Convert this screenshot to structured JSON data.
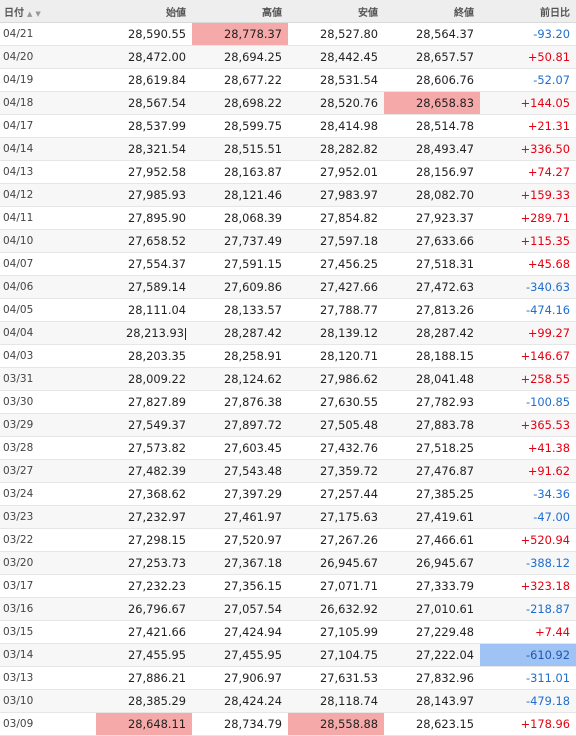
{
  "headers": {
    "date": "日付",
    "open": "始値",
    "high": "高値",
    "low": "安値",
    "close": "終値",
    "change": "前日比"
  },
  "rows": [
    {
      "date": "04/21",
      "open": "28,590.55",
      "high": "28,778.37",
      "low": "28,527.80",
      "close": "28,564.37",
      "change": "-93.20",
      "dir": "down",
      "hl": "high"
    },
    {
      "date": "04/20",
      "open": "28,472.00",
      "high": "28,694.25",
      "low": "28,442.45",
      "close": "28,657.57",
      "change": "+50.81",
      "dir": "up"
    },
    {
      "date": "04/19",
      "open": "28,619.84",
      "high": "28,677.22",
      "low": "28,531.54",
      "close": "28,606.76",
      "change": "-52.07",
      "dir": "down"
    },
    {
      "date": "04/18",
      "open": "28,567.54",
      "high": "28,698.22",
      "low": "28,520.76",
      "close": "28,658.83",
      "change": "+144.05",
      "dir": "up",
      "hl": "close"
    },
    {
      "date": "04/17",
      "open": "28,537.99",
      "high": "28,599.75",
      "low": "28,414.98",
      "close": "28,514.78",
      "change": "+21.31",
      "dir": "up"
    },
    {
      "date": "04/14",
      "open": "28,321.54",
      "high": "28,515.51",
      "low": "28,282.82",
      "close": "28,493.47",
      "change": "+336.50",
      "dir": "up"
    },
    {
      "date": "04/13",
      "open": "27,952.58",
      "high": "28,163.87",
      "low": "27,952.01",
      "close": "28,156.97",
      "change": "+74.27",
      "dir": "up"
    },
    {
      "date": "04/12",
      "open": "27,985.93",
      "high": "28,121.46",
      "low": "27,983.97",
      "close": "28,082.70",
      "change": "+159.33",
      "dir": "up"
    },
    {
      "date": "04/11",
      "open": "27,895.90",
      "high": "28,068.39",
      "low": "27,854.82",
      "close": "27,923.37",
      "change": "+289.71",
      "dir": "up"
    },
    {
      "date": "04/10",
      "open": "27,658.52",
      "high": "27,737.49",
      "low": "27,597.18",
      "close": "27,633.66",
      "change": "+115.35",
      "dir": "up"
    },
    {
      "date": "04/07",
      "open": "27,554.37",
      "high": "27,591.15",
      "low": "27,456.25",
      "close": "27,518.31",
      "change": "+45.68",
      "dir": "up"
    },
    {
      "date": "04/06",
      "open": "27,589.14",
      "high": "27,609.86",
      "low": "27,427.66",
      "close": "27,472.63",
      "change": "-340.63",
      "dir": "down"
    },
    {
      "date": "04/05",
      "open": "28,111.04",
      "high": "28,133.57",
      "low": "27,788.77",
      "close": "27,813.26",
      "change": "-474.16",
      "dir": "down"
    },
    {
      "date": "04/04",
      "open": "28,213.93",
      "high": "28,287.42",
      "low": "28,139.12",
      "close": "28,287.42",
      "change": "+99.27",
      "dir": "up",
      "caret": "open"
    },
    {
      "date": "04/03",
      "open": "28,203.35",
      "high": "28,258.91",
      "low": "28,120.71",
      "close": "28,188.15",
      "change": "+146.67",
      "dir": "up"
    },
    {
      "date": "03/31",
      "open": "28,009.22",
      "high": "28,124.62",
      "low": "27,986.62",
      "close": "28,041.48",
      "change": "+258.55",
      "dir": "up"
    },
    {
      "date": "03/30",
      "open": "27,827.89",
      "high": "27,876.38",
      "low": "27,630.55",
      "close": "27,782.93",
      "change": "-100.85",
      "dir": "down"
    },
    {
      "date": "03/29",
      "open": "27,549.37",
      "high": "27,897.72",
      "low": "27,505.48",
      "close": "27,883.78",
      "change": "+365.53",
      "dir": "up"
    },
    {
      "date": "03/28",
      "open": "27,573.82",
      "high": "27,603.45",
      "low": "27,432.76",
      "close": "27,518.25",
      "change": "+41.38",
      "dir": "up"
    },
    {
      "date": "03/27",
      "open": "27,482.39",
      "high": "27,543.48",
      "low": "27,359.72",
      "close": "27,476.87",
      "change": "+91.62",
      "dir": "up"
    },
    {
      "date": "03/24",
      "open": "27,368.62",
      "high": "27,397.29",
      "low": "27,257.44",
      "close": "27,385.25",
      "change": "-34.36",
      "dir": "down"
    },
    {
      "date": "03/23",
      "open": "27,232.97",
      "high": "27,461.97",
      "low": "27,175.63",
      "close": "27,419.61",
      "change": "-47.00",
      "dir": "down"
    },
    {
      "date": "03/22",
      "open": "27,298.15",
      "high": "27,520.97",
      "low": "27,267.26",
      "close": "27,466.61",
      "change": "+520.94",
      "dir": "up"
    },
    {
      "date": "03/20",
      "open": "27,253.73",
      "high": "27,367.18",
      "low": "26,945.67",
      "close": "26,945.67",
      "change": "-388.12",
      "dir": "down"
    },
    {
      "date": "03/17",
      "open": "27,232.23",
      "high": "27,356.15",
      "low": "27,071.71",
      "close": "27,333.79",
      "change": "+323.18",
      "dir": "up"
    },
    {
      "date": "03/16",
      "open": "26,796.67",
      "high": "27,057.54",
      "low": "26,632.92",
      "close": "27,010.61",
      "change": "-218.87",
      "dir": "down"
    },
    {
      "date": "03/15",
      "open": "27,421.66",
      "high": "27,424.94",
      "low": "27,105.99",
      "close": "27,229.48",
      "change": "+7.44",
      "dir": "up"
    },
    {
      "date": "03/14",
      "open": "27,455.95",
      "high": "27,455.95",
      "low": "27,104.75",
      "close": "27,222.04",
      "change": "-610.92",
      "dir": "down",
      "hl": "change-blue"
    },
    {
      "date": "03/13",
      "open": "27,886.21",
      "high": "27,906.97",
      "low": "27,631.53",
      "close": "27,832.96",
      "change": "-311.01",
      "dir": "down"
    },
    {
      "date": "03/10",
      "open": "28,385.29",
      "high": "28,424.24",
      "low": "28,118.74",
      "close": "28,143.97",
      "change": "-479.18",
      "dir": "down"
    },
    {
      "date": "03/09",
      "open": "28,648.11",
      "high": "28,734.79",
      "low": "28,558.88",
      "close": "28,623.15",
      "change": "+178.96",
      "dir": "up",
      "hl": "open-low"
    }
  ],
  "colors": {
    "up": "#e60012",
    "down": "#1f6fcf",
    "highlight_red": "#f6a9a9",
    "highlight_blue": "#9ec3f4"
  }
}
